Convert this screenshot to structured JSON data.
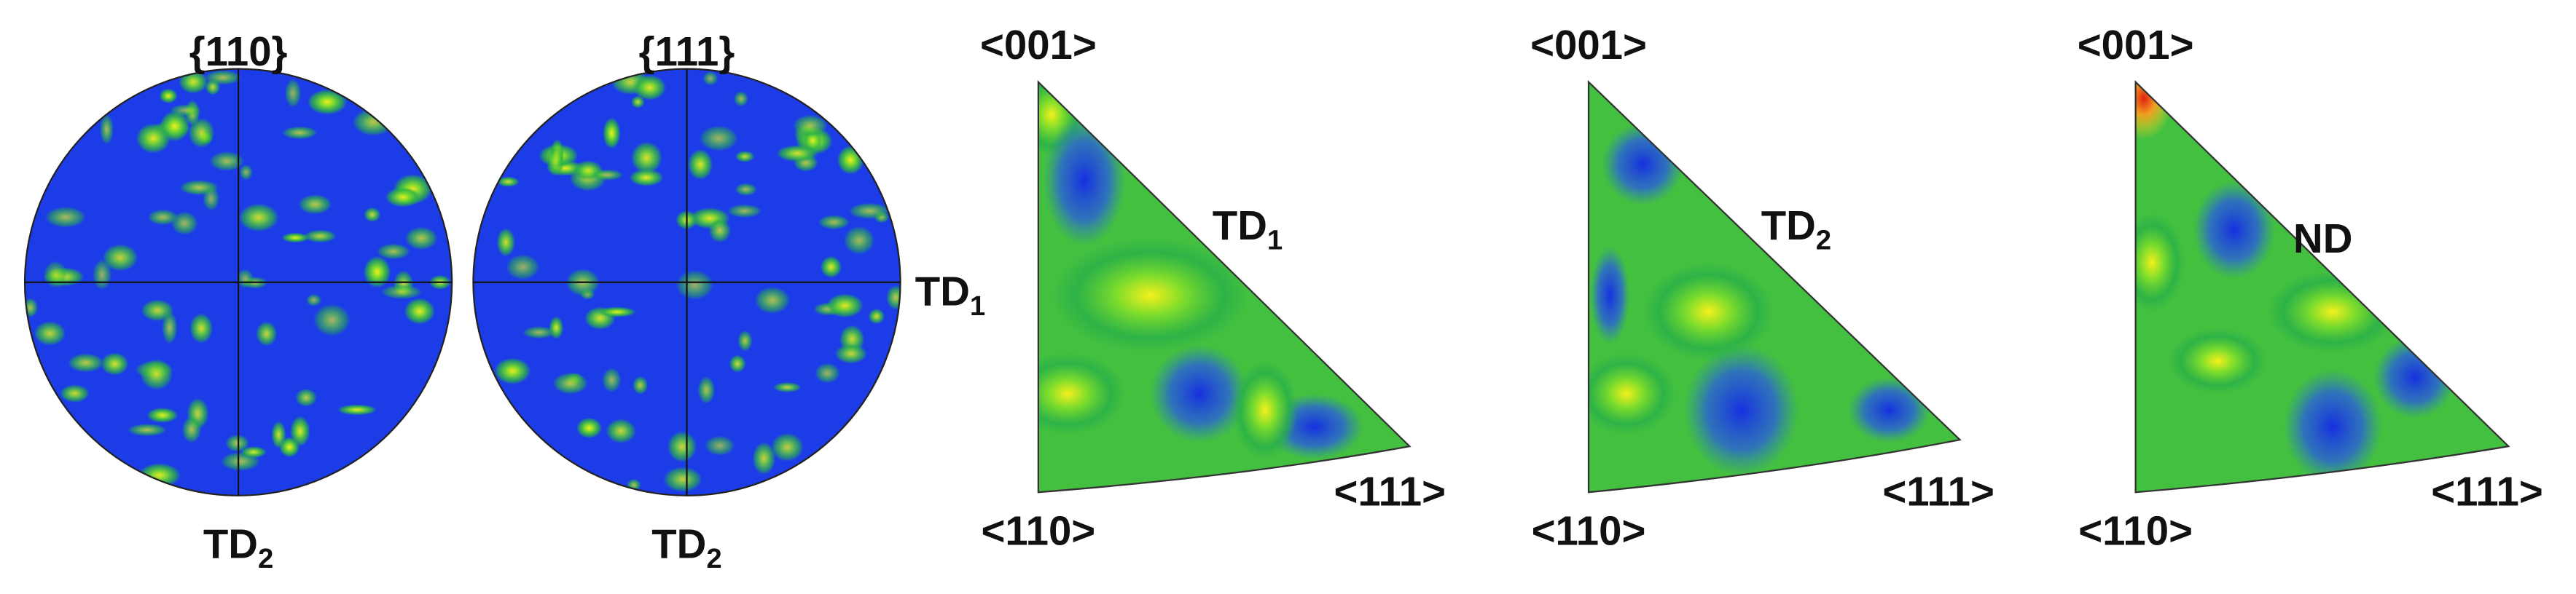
{
  "pole_figures": [
    {
      "label": "{110}",
      "bottom_label": {
        "text": "TD",
        "sub": "2"
      }
    },
    {
      "label": "{111}",
      "bottom_label": {
        "text": "TD",
        "sub": "2"
      }
    }
  ],
  "side_label": {
    "text": "TD",
    "sub": "1"
  },
  "inverse_pole_figures": [
    {
      "top": "<001>",
      "bottom_left": "<110>",
      "bottom_right": "<111>",
      "direction": {
        "text": "TD",
        "sub": "1"
      }
    },
    {
      "top": "<001>",
      "bottom_left": "<110>",
      "bottom_right": "<111>",
      "direction": {
        "text": "TD",
        "sub": "2"
      }
    },
    {
      "top": "<001>",
      "bottom_left": "<110>",
      "bottom_right": "<111>",
      "direction": {
        "text": "ND"
      }
    }
  ]
}
